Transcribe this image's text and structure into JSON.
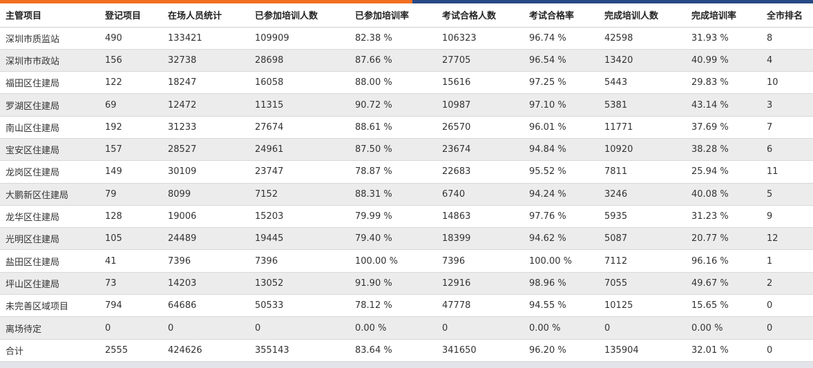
{
  "headers": [
    "主管项目",
    "登记项目",
    "在场人员统计",
    "已参加培训人数",
    "已参加培训率",
    "考试合格人数",
    "考试合格率",
    "完成培训人数",
    "完成培训率",
    "全市排名"
  ],
  "rows": [
    [
      "深圳市质监站",
      "490",
      "133421",
      "109909",
      "82.38 %",
      "106323",
      "96.74 %",
      "42598",
      "31.93 %",
      "8"
    ],
    [
      "深圳市市政站",
      "156",
      "32738",
      "28698",
      "87.66 %",
      "27705",
      "96.54 %",
      "13420",
      "40.99 %",
      "4"
    ],
    [
      "福田区住建局",
      "122",
      "18247",
      "16058",
      "88.00 %",
      "15616",
      "97.25 %",
      "5443",
      "29.83 %",
      "10"
    ],
    [
      "罗湖区住建局",
      "69",
      "12472",
      "11315",
      "90.72 %",
      "10987",
      "97.10 %",
      "5381",
      "43.14 %",
      "3"
    ],
    [
      "南山区住建局",
      "192",
      "31233",
      "27674",
      "88.61 %",
      "26570",
      "96.01 %",
      "11771",
      "37.69 %",
      "7"
    ],
    [
      "宝安区住建局",
      "157",
      "28527",
      "24961",
      "87.50 %",
      "23674",
      "94.84 %",
      "10920",
      "38.28 %",
      "6"
    ],
    [
      "龙岗区住建局",
      "149",
      "30109",
      "23747",
      "78.87 %",
      "22683",
      "95.52 %",
      "7811",
      "25.94 %",
      "11"
    ],
    [
      "大鹏新区住建局",
      "79",
      "8099",
      "7152",
      "88.31 %",
      "6740",
      "94.24 %",
      "3246",
      "40.08 %",
      "5"
    ],
    [
      "龙华区住建局",
      "128",
      "19006",
      "15203",
      "79.99 %",
      "14863",
      "97.76 %",
      "5935",
      "31.23 %",
      "9"
    ],
    [
      "光明区住建局",
      "105",
      "24489",
      "19445",
      "79.40 %",
      "18399",
      "94.62 %",
      "5087",
      "20.77 %",
      "12"
    ],
    [
      "盐田区住建局",
      "41",
      "7396",
      "7396",
      "100.00 %",
      "7396",
      "100.00 %",
      "7112",
      "96.16 %",
      "1"
    ],
    [
      "坪山区住建局",
      "73",
      "14203",
      "13052",
      "91.90 %",
      "12916",
      "98.96 %",
      "7055",
      "49.67 %",
      "2"
    ],
    [
      "未完善区域项目",
      "794",
      "64686",
      "50533",
      "78.12 %",
      "47778",
      "94.55 %",
      "10125",
      "15.65 %",
      "0"
    ],
    [
      "离场待定",
      "0",
      "0",
      "0",
      "0.00 %",
      "0",
      "0.00 %",
      "0",
      "0.00 %",
      "0"
    ],
    [
      "合计",
      "2555",
      "424626",
      "355143",
      "83.64 %",
      "341650",
      "96.20 %",
      "135904",
      "32.01 %",
      "0"
    ]
  ]
}
